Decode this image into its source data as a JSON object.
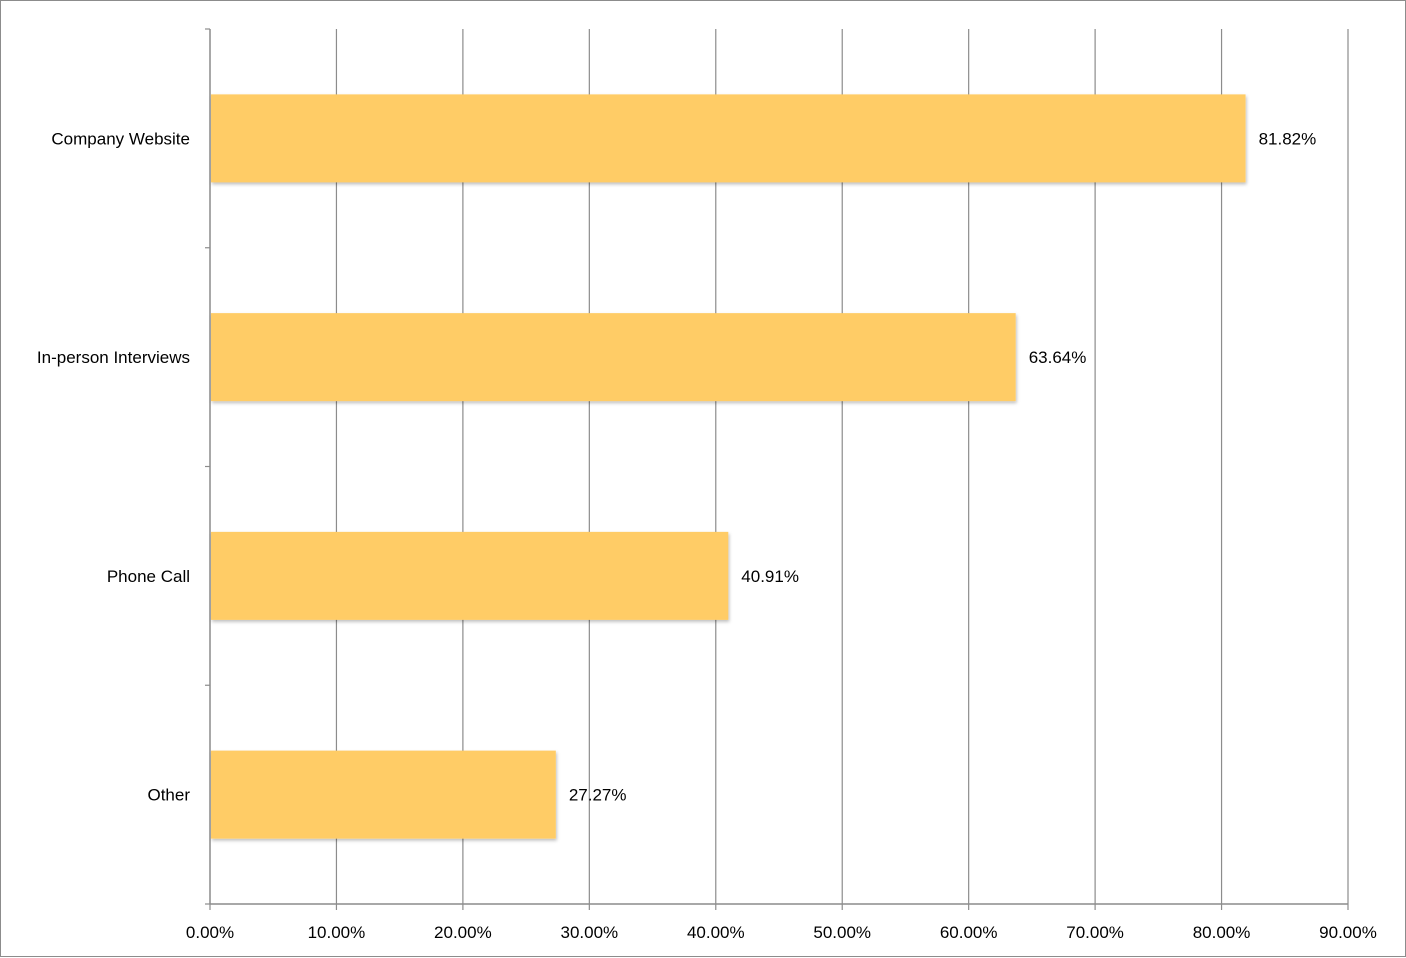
{
  "chart_data": {
    "type": "bar",
    "orientation": "horizontal",
    "title": "",
    "xlabel": "",
    "ylabel": "",
    "categories": [
      "Company Website",
      "In-person Interviews",
      "Phone Call",
      "Other"
    ],
    "values": [
      81.82,
      63.64,
      40.91,
      27.27
    ],
    "data_labels": [
      "81.82%",
      "63.64%",
      "40.91%",
      "27.27%"
    ],
    "xlim": [
      0,
      90
    ],
    "x_ticks": [
      0,
      10,
      20,
      30,
      40,
      50,
      60,
      70,
      80,
      90
    ],
    "x_tick_labels": [
      "0.00%",
      "10.00%",
      "20.00%",
      "30.00%",
      "40.00%",
      "50.00%",
      "60.00%",
      "70.00%",
      "80.00%",
      "90.00%"
    ],
    "grid": "vertical",
    "legend": "none",
    "colors": {
      "bar": "#FFCC66",
      "bar_shadow": "#c8c8c8",
      "grid": "#8c8c8c",
      "axis": "#8c8c8c",
      "text": "#000000"
    }
  }
}
